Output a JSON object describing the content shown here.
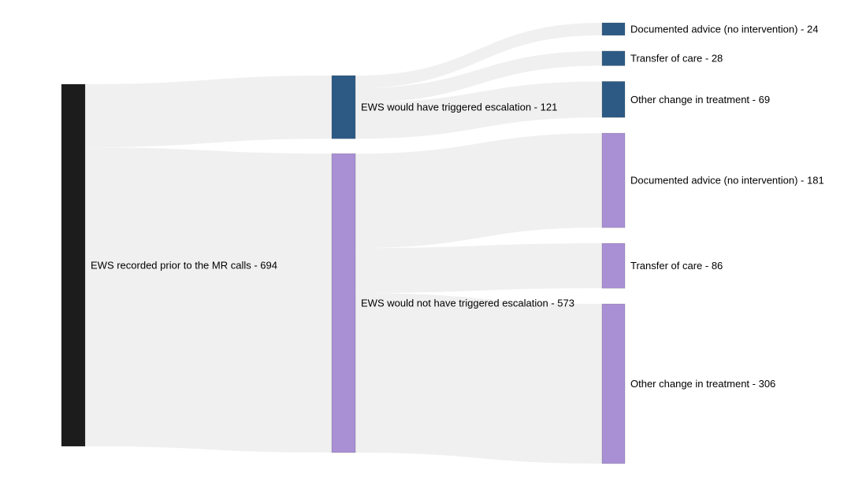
{
  "chart_data": {
    "type": "sankey",
    "title": "",
    "orientation": "horizontal",
    "value_label_separator": " - ",
    "background": "#ffffff",
    "link_color": "#f0f0f0",
    "label_color": "#000000",
    "node_colors": {
      "source_black": "#1c1c1c",
      "escalation_blue": "#2c5a84",
      "no_escalation_purple": "#a98fd4"
    },
    "nodes": [
      {
        "id": "ews-recorded",
        "label": "EWS recorded prior to the MR calls",
        "value": 694,
        "column": 0,
        "color": "#1c1c1c"
      },
      {
        "id": "would-trigger",
        "label": "EWS would have triggered escalation",
        "value": 121,
        "column": 1,
        "color": "#2c5a84"
      },
      {
        "id": "would-not-trigger",
        "label": "EWS would not have triggered escalation",
        "value": 573,
        "column": 1,
        "color": "#a98fd4"
      },
      {
        "id": "doc-advice-esc",
        "label": "Documented advice (no intervention)",
        "value": 24,
        "column": 2,
        "color": "#2c5a84"
      },
      {
        "id": "transfer-esc",
        "label": "Transfer of care",
        "value": 28,
        "column": 2,
        "color": "#2c5a84"
      },
      {
        "id": "other-esc",
        "label": "Other change in treatment",
        "value": 69,
        "column": 2,
        "color": "#2c5a84"
      },
      {
        "id": "doc-advice-noesc",
        "label": "Documented advice (no intervention)",
        "value": 181,
        "column": 2,
        "color": "#a98fd4"
      },
      {
        "id": "transfer-noesc",
        "label": "Transfer of care",
        "value": 86,
        "column": 2,
        "color": "#a98fd4"
      },
      {
        "id": "other-noesc",
        "label": "Other change in treatment",
        "value": 306,
        "column": 2,
        "color": "#a98fd4"
      }
    ],
    "links": [
      {
        "source": "ews-recorded",
        "target": "would-trigger",
        "value": 121
      },
      {
        "source": "ews-recorded",
        "target": "would-not-trigger",
        "value": 573
      },
      {
        "source": "would-trigger",
        "target": "doc-advice-esc",
        "value": 24
      },
      {
        "source": "would-trigger",
        "target": "transfer-esc",
        "value": 28
      },
      {
        "source": "would-trigger",
        "target": "other-esc",
        "value": 69
      },
      {
        "source": "would-not-trigger",
        "target": "doc-advice-noesc",
        "value": 181
      },
      {
        "source": "would-not-trigger",
        "target": "transfer-noesc",
        "value": 86
      },
      {
        "source": "would-not-trigger",
        "target": "other-noesc",
        "value": 306
      }
    ]
  }
}
